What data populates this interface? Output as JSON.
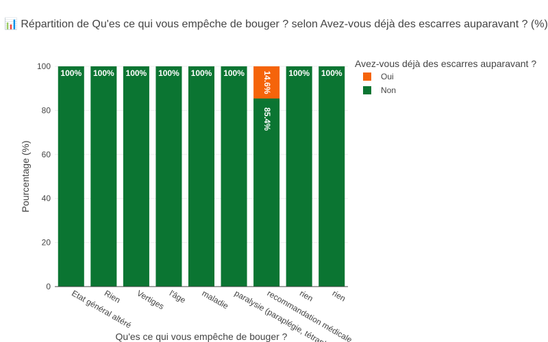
{
  "chart_data": {
    "type": "bar",
    "stacked": true,
    "title": "📊 Répartition de Qu'es ce qui vous empêche de bouger ? selon Avez-vous déjà des escarres auparavant ? (%)",
    "xlabel": "Qu'es ce qui vous empêche de bouger ?",
    "ylabel": "Pourcentage (%)",
    "ylim": [
      0,
      100
    ],
    "yticks": [
      0,
      20,
      40,
      60,
      80,
      100
    ],
    "categories": [
      "Etat général altéré",
      "Rien",
      "Vertiges",
      "l'âge",
      "maladie",
      "paralysie (paraplégie, tétraplégie)",
      "recommandation médicale",
      "rien",
      "rien"
    ],
    "series": [
      {
        "name": "Non",
        "color": "#0b7532",
        "values": [
          100,
          100,
          100,
          100,
          100,
          100,
          85.4,
          100,
          100
        ],
        "labels": [
          "100%",
          "100%",
          "100%",
          "100%",
          "100%",
          "100%",
          "85.4%",
          "100%",
          "100%"
        ]
      },
      {
        "name": "Oui",
        "color": "#f5640a",
        "values": [
          0,
          0,
          0,
          0,
          0,
          0,
          14.6,
          0,
          0
        ],
        "labels": [
          "",
          "",
          "",
          "",
          "",
          "",
          "14.6%",
          "",
          ""
        ]
      }
    ],
    "legend": {
      "title": "Avez-vous déjà des escarres auparavant ?",
      "placement": "right",
      "order": [
        "Oui",
        "Non"
      ]
    },
    "grid": true
  }
}
